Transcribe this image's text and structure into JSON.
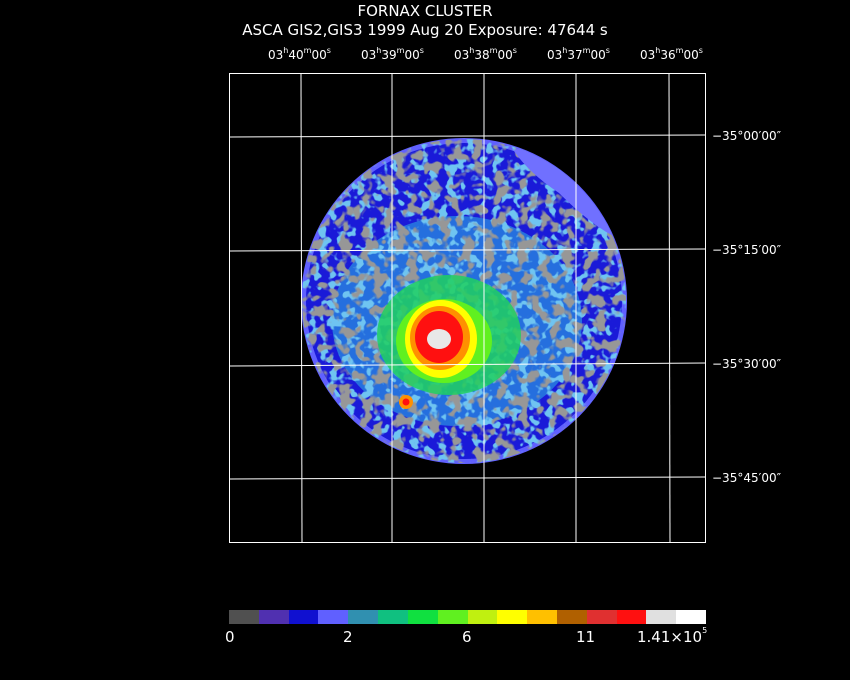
{
  "title": "FORNAX CLUSTER",
  "subtitle": "ASCA GIS2,GIS3    1999 Aug 20     Exposure: 47644 s",
  "ra_labels": [
    {
      "h": "03",
      "m": "40",
      "s": "00"
    },
    {
      "h": "03",
      "m": "39",
      "s": "00"
    },
    {
      "h": "03",
      "m": "38",
      "s": "00"
    },
    {
      "h": "03",
      "m": "37",
      "s": "00"
    },
    {
      "h": "03",
      "m": "36",
      "s": "00"
    }
  ],
  "dec_labels": [
    "−35°00′00″",
    "−35°15′00″",
    "−35°30′00″",
    "−35°45′00″"
  ],
  "colorbar": {
    "colors": [
      "#505050",
      "#5030b0",
      "#1010d0",
      "#6060ff",
      "#3090b0",
      "#10c080",
      "#10e040",
      "#60f020",
      "#c0f010",
      "#ffff00",
      "#ffc000",
      "#b06000",
      "#e03030",
      "#ff1010",
      "#e0e0e0",
      "#ffffff"
    ],
    "tick_labels": {
      "t0": "0",
      "t1": "2",
      "t2": "6",
      "t3": "11",
      "t4_base": "1.41×10",
      "t4_exp": "5"
    }
  },
  "image_colors": {
    "background": "#000000",
    "grid": "#ffffff",
    "outer": "#1a1ad8",
    "mid": "#2a8ce0",
    "green": "#20d060",
    "yellow": "#ffff00",
    "orange": "#ff9000",
    "red": "#ff1010",
    "core": "#e8e8e8",
    "gray": "#505050",
    "lavender": "#7070ff"
  }
}
